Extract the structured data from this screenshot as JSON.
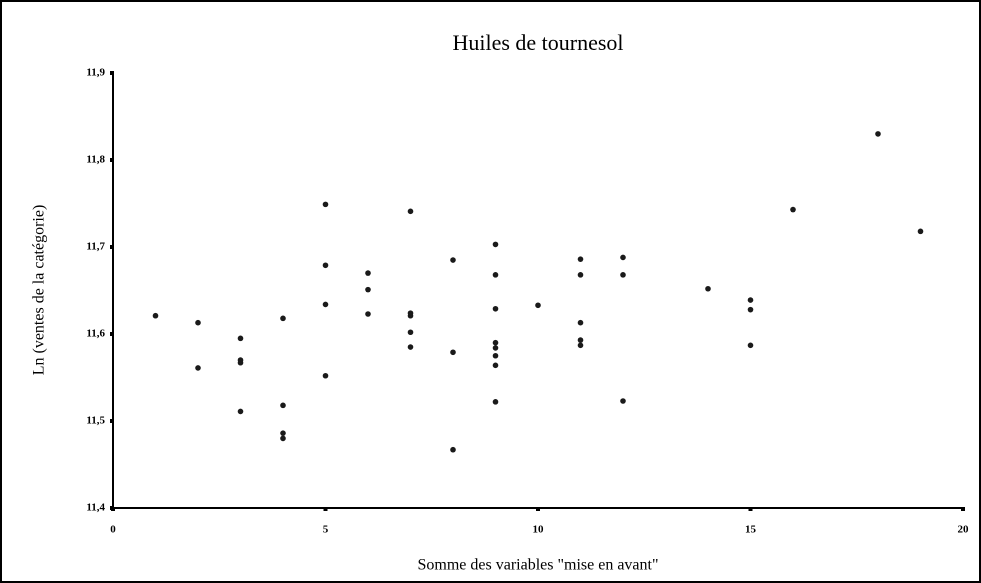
{
  "chart_data": {
    "type": "scatter",
    "title": "Huiles de tournesol",
    "x_label": "Somme des variables \"mise en avant\"",
    "y_label": "Ln (ventes de la catégorie)",
    "color": "#1a1a1a",
    "x": [
      1,
      2,
      2,
      3,
      3,
      3,
      3,
      4,
      4,
      4,
      4,
      5,
      5,
      5,
      5,
      6,
      6,
      6,
      7,
      7,
      7,
      7,
      7,
      8,
      8,
      8,
      9,
      9,
      9,
      9,
      9,
      9,
      9,
      9,
      10,
      11,
      11,
      11,
      11,
      11,
      12,
      12,
      12,
      14,
      15,
      15,
      15,
      16,
      18,
      19
    ],
    "values": [
      11.621,
      11.613,
      11.561,
      11.595,
      11.57,
      11.567,
      11.511,
      11.618,
      11.518,
      11.486,
      11.48,
      11.749,
      11.679,
      11.634,
      11.552,
      11.67,
      11.651,
      11.623,
      11.741,
      11.624,
      11.621,
      11.602,
      11.585,
      11.685,
      11.579,
      11.467,
      11.703,
      11.668,
      11.629,
      11.59,
      11.584,
      11.575,
      11.564,
      11.522,
      11.633,
      11.686,
      11.668,
      11.613,
      11.593,
      11.587,
      11.688,
      11.668,
      11.523,
      11.652,
      11.639,
      11.628,
      11.587,
      11.743,
      11.83,
      11.718
    ],
    "xlim": [
      0,
      20
    ],
    "xticks": [
      0,
      5,
      10,
      15,
      20
    ],
    "ylim": [
      11.4,
      11.9
    ],
    "yticks": [
      {
        "value": 11.4,
        "label": "11,4"
      },
      {
        "value": 11.5,
        "label": "11,5"
      },
      {
        "value": 11.6,
        "label": "11,6"
      },
      {
        "value": 11.7,
        "label": "11,7"
      },
      {
        "value": 11.8,
        "label": "11,8"
      },
      {
        "value": 11.9,
        "label": "11,9"
      }
    ]
  }
}
